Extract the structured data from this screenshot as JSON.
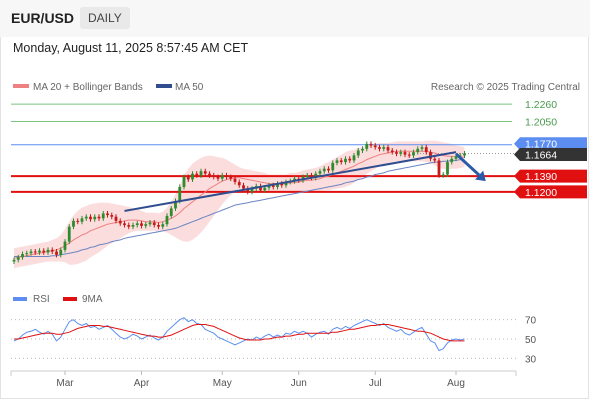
{
  "header": {
    "pair": "EUR/USD",
    "period": "DAILY",
    "timestamp": "Monday, August 11, 2025 8:57:45 AM CET"
  },
  "legend": {
    "ma20_bb": "MA 20 + Bollinger Bands",
    "ma50": "MA 50",
    "credit": "Research © 2025 Trading Central",
    "rsi": "RSI",
    "rsi_ma": "9MA"
  },
  "colors": {
    "ma20": "#f08080",
    "ma50": "#2f4d8f",
    "bollinger_fill": "#fbd9d9",
    "resistance": "#7bc47f",
    "pivot": "#5b8ef0",
    "support": "#e01010",
    "current_price": "#333333",
    "candle_up": "#2e8b2e",
    "candle_down": "#c81818",
    "rsi": "#5b8ef0",
    "rsi_ma": "#e01010",
    "trend_line": "#2f4d8f",
    "arrow": "#2a5aa8"
  },
  "chart_data": [
    {
      "type": "candlestick",
      "title": "",
      "x_ticks": [
        "Mar",
        "Apr",
        "May",
        "Jun",
        "Jul",
        "Aug"
      ],
      "y_range": [
        1.01,
        1.237
      ],
      "levels": [
        {
          "value": 1.226,
          "label": "1.2260",
          "kind": "resistance"
        },
        {
          "value": 1.205,
          "label": "1.2050",
          "kind": "resistance"
        },
        {
          "value": 1.177,
          "label": "1.1770",
          "kind": "pivot"
        },
        {
          "value": 1.1664,
          "label": "1.1664",
          "kind": "current"
        },
        {
          "value": 1.139,
          "label": "1.1390",
          "kind": "support"
        },
        {
          "value": 1.12,
          "label": "1.1200",
          "kind": "support"
        }
      ],
      "closes": [
        1.038,
        1.041,
        1.045,
        1.046,
        1.048,
        1.047,
        1.049,
        1.047,
        1.05,
        1.048,
        1.044,
        1.05,
        1.06,
        1.078,
        1.085,
        1.084,
        1.088,
        1.09,
        1.087,
        1.09,
        1.088,
        1.094,
        1.092,
        1.09,
        1.085,
        1.082,
        1.08,
        1.078,
        1.08,
        1.082,
        1.079,
        1.081,
        1.083,
        1.08,
        1.078,
        1.081,
        1.091,
        1.1,
        1.109,
        1.126,
        1.138,
        1.135,
        1.142,
        1.14,
        1.145,
        1.142,
        1.14,
        1.138,
        1.136,
        1.14,
        1.138,
        1.136,
        1.132,
        1.128,
        1.124,
        1.12,
        1.124,
        1.127,
        1.122,
        1.125,
        1.128,
        1.126,
        1.13,
        1.128,
        1.132,
        1.133,
        1.136,
        1.134,
        1.138,
        1.14,
        1.137,
        1.142,
        1.145,
        1.148,
        1.146,
        1.155,
        1.158,
        1.156,
        1.16,
        1.158,
        1.164,
        1.17,
        1.172,
        1.178,
        1.176,
        1.174,
        1.172,
        1.174,
        1.17,
        1.168,
        1.166,
        1.168,
        1.165,
        1.164,
        1.168,
        1.172,
        1.174,
        1.168,
        1.16,
        1.158,
        1.14,
        1.141,
        1.156,
        1.16,
        1.163,
        1.164,
        1.1664
      ],
      "ma20": [
        1.04,
        1.041,
        1.042,
        1.043,
        1.044,
        1.045,
        1.046,
        1.047,
        1.048,
        1.049,
        1.05,
        1.052,
        1.055,
        1.058,
        1.062,
        1.065,
        1.068,
        1.07,
        1.073,
        1.075,
        1.077,
        1.079,
        1.081,
        1.082,
        1.083,
        1.084,
        1.085,
        1.086,
        1.086,
        1.086,
        1.085,
        1.084,
        1.084,
        1.084,
        1.083,
        1.084,
        1.086,
        1.088,
        1.091,
        1.095,
        1.1,
        1.104,
        1.108,
        1.112,
        1.116,
        1.12,
        1.124,
        1.127,
        1.13,
        1.133,
        1.135,
        1.136,
        1.137,
        1.137,
        1.136,
        1.135,
        1.134,
        1.133,
        1.132,
        1.131,
        1.13,
        1.13,
        1.13,
        1.13,
        1.13,
        1.131,
        1.131,
        1.132,
        1.133,
        1.134,
        1.134,
        1.135,
        1.136,
        1.138,
        1.139,
        1.141,
        1.143,
        1.145,
        1.147,
        1.149,
        1.151,
        1.154,
        1.156,
        1.159,
        1.161,
        1.163,
        1.165,
        1.166,
        1.167,
        1.168,
        1.169,
        1.169,
        1.169,
        1.169,
        1.169,
        1.169,
        1.169,
        1.169,
        1.168,
        1.167,
        1.165,
        1.164,
        1.163,
        1.163,
        1.162,
        1.162,
        1.162
      ],
      "ma50": [
        1.042,
        1.042,
        1.042,
        1.042,
        1.042,
        1.042,
        1.042,
        1.042,
        1.042,
        1.043,
        1.043,
        1.044,
        1.045,
        1.046,
        1.047,
        1.048,
        1.05,
        1.051,
        1.053,
        1.054,
        1.056,
        1.057,
        1.058,
        1.06,
        1.061,
        1.062,
        1.064,
        1.065,
        1.066,
        1.067,
        1.068,
        1.069,
        1.07,
        1.071,
        1.072,
        1.073,
        1.074,
        1.075,
        1.076,
        1.078,
        1.08,
        1.082,
        1.084,
        1.086,
        1.088,
        1.09,
        1.092,
        1.094,
        1.096,
        1.098,
        1.1,
        1.102,
        1.104,
        1.105,
        1.106,
        1.107,
        1.108,
        1.109,
        1.11,
        1.111,
        1.112,
        1.113,
        1.114,
        1.115,
        1.116,
        1.117,
        1.118,
        1.119,
        1.12,
        1.121,
        1.122,
        1.123,
        1.124,
        1.125,
        1.126,
        1.127,
        1.128,
        1.129,
        1.131,
        1.132,
        1.133,
        1.135,
        1.136,
        1.138,
        1.139,
        1.141,
        1.142,
        1.143,
        1.145,
        1.146,
        1.147,
        1.148,
        1.149,
        1.15,
        1.151,
        1.152,
        1.153,
        1.154,
        1.155,
        1.156,
        1.156,
        1.157,
        1.157,
        1.158,
        1.158,
        1.159,
        1.159
      ],
      "bb_half_width": [
        0.012,
        0.012,
        0.012,
        0.012,
        0.012,
        0.012,
        0.012,
        0.012,
        0.012,
        0.013,
        0.014,
        0.016,
        0.02,
        0.026,
        0.03,
        0.032,
        0.033,
        0.033,
        0.032,
        0.031,
        0.03,
        0.028,
        0.026,
        0.024,
        0.022,
        0.02,
        0.018,
        0.016,
        0.014,
        0.013,
        0.012,
        0.011,
        0.011,
        0.011,
        0.011,
        0.012,
        0.015,
        0.02,
        0.026,
        0.033,
        0.04,
        0.044,
        0.046,
        0.046,
        0.045,
        0.043,
        0.04,
        0.036,
        0.032,
        0.028,
        0.024,
        0.02,
        0.016,
        0.013,
        0.012,
        0.012,
        0.012,
        0.012,
        0.012,
        0.012,
        0.011,
        0.011,
        0.011,
        0.011,
        0.011,
        0.012,
        0.012,
        0.012,
        0.013,
        0.013,
        0.014,
        0.014,
        0.015,
        0.016,
        0.017,
        0.018,
        0.019,
        0.02,
        0.021,
        0.021,
        0.02,
        0.019,
        0.018,
        0.017,
        0.016,
        0.015,
        0.014,
        0.013,
        0.012,
        0.012,
        0.012,
        0.012,
        0.012,
        0.012,
        0.012,
        0.012,
        0.012,
        0.013,
        0.014,
        0.015,
        0.016,
        0.016,
        0.016,
        0.015,
        0.014,
        0.013,
        0.012
      ],
      "trend_line": {
        "from": [
          26,
          1.097
        ],
        "to": [
          104,
          1.168
        ]
      },
      "forecast_arrow": {
        "from": [
          104,
          1.166
        ],
        "to": [
          111,
          1.133
        ]
      }
    },
    {
      "type": "line",
      "title": "",
      "y_ticks": [
        70,
        50,
        30
      ],
      "y_range": [
        20,
        80
      ],
      "series": [
        {
          "name": "RSI",
          "values": [
            48,
            50,
            54,
            57,
            58,
            60,
            57,
            55,
            58,
            55,
            48,
            52,
            60,
            68,
            70,
            66,
            64,
            66,
            62,
            63,
            60,
            62,
            64,
            60,
            56,
            52,
            50,
            52,
            55,
            53,
            50,
            52,
            54,
            51,
            49,
            52,
            58,
            62,
            66,
            70,
            72,
            68,
            70,
            66,
            65,
            60,
            58,
            56,
            52,
            50,
            48,
            46,
            44,
            46,
            48,
            50,
            49,
            52,
            50,
            53,
            55,
            52,
            54,
            52,
            56,
            55,
            58,
            56,
            58,
            56,
            52,
            55,
            57,
            58,
            55,
            60,
            62,
            60,
            63,
            61,
            64,
            66,
            68,
            70,
            68,
            66,
            64,
            66,
            62,
            60,
            58,
            60,
            56,
            54,
            57,
            60,
            62,
            55,
            48,
            46,
            38,
            40,
            46,
            49,
            50,
            49,
            50
          ]
        },
        {
          "name": "9MA",
          "values": [
            50,
            50,
            51,
            52,
            53,
            54,
            55,
            56,
            56,
            56,
            55,
            55,
            56,
            57,
            59,
            61,
            62,
            63,
            64,
            64,
            64,
            63,
            63,
            62,
            61,
            60,
            59,
            58,
            57,
            56,
            55,
            54,
            53,
            53,
            52,
            52,
            53,
            54,
            56,
            58,
            60,
            62,
            64,
            65,
            65,
            65,
            64,
            63,
            61,
            59,
            57,
            55,
            53,
            51,
            50,
            49,
            49,
            49,
            49,
            50,
            50,
            51,
            52,
            52,
            53,
            53,
            54,
            55,
            55,
            56,
            56,
            56,
            56,
            56,
            56,
            57,
            57,
            58,
            59,
            60,
            60,
            61,
            62,
            63,
            64,
            64,
            65,
            65,
            65,
            64,
            63,
            62,
            61,
            60,
            59,
            58,
            58,
            57,
            56,
            54,
            52,
            50,
            49,
            48,
            48,
            48,
            48
          ]
        }
      ]
    }
  ]
}
